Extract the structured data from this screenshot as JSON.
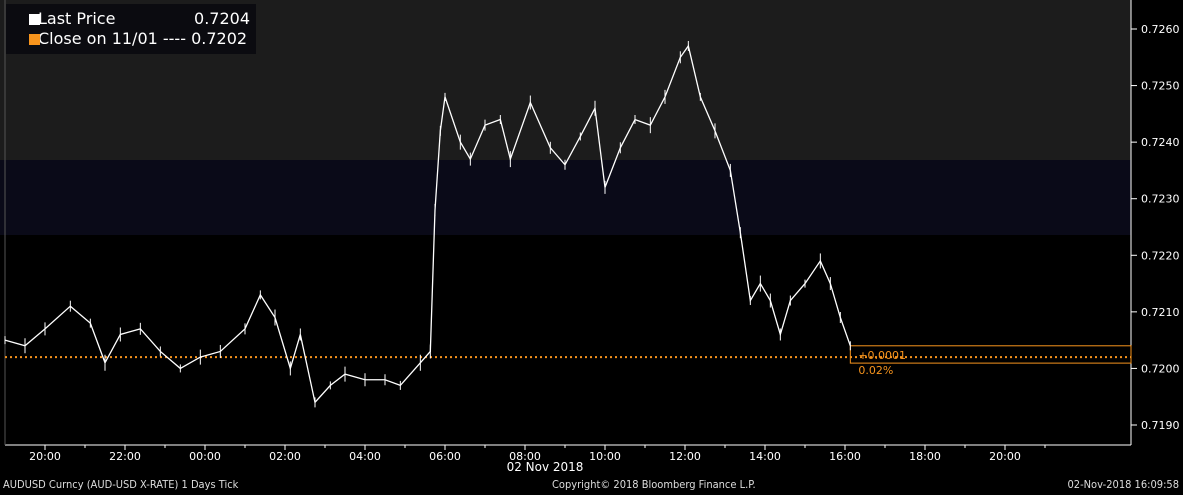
{
  "legend": {
    "last_label": "Last Price",
    "last_value": "0.7204",
    "close_label": "Close on 11/01 ---- 0.7202",
    "close_value": "0.7202"
  },
  "colors": {
    "line": "#ffffff",
    "close": "#f7941d",
    "bg_top": "#1c1c1c",
    "band": "#0a0a18"
  },
  "annotation": {
    "change": "+0.0001",
    "pct": "0.02%"
  },
  "footer": {
    "left": "AUDUSD Curncy (AUD-USD X-RATE) 1 Days  Tick",
    "center": "Copyright© 2018 Bloomberg Finance L.P.",
    "right": "02-Nov-2018 16:09:58"
  },
  "chart_data": {
    "type": "line",
    "ylim": [
      0.7187,
      0.7265
    ],
    "yticks": [
      "0.7260",
      "0.7250",
      "0.7240",
      "0.7230",
      "0.7220",
      "0.7210",
      "0.7200",
      "0.7190"
    ],
    "xticks": [
      "20:00",
      "22:00",
      "00:00",
      "02:00",
      "04:00",
      "06:00",
      "08:00",
      "10:00",
      "12:00",
      "14:00",
      "16:00",
      "18:00",
      "20:00"
    ],
    "xdate": "02 Nov 2018",
    "close_value": 0.7202,
    "last_value": 0.7204,
    "series": [
      {
        "x": [
          "19:00",
          "19:30",
          "20:00",
          "20:38",
          "21:08",
          "21:30",
          "21:53",
          "22:23",
          "22:53",
          "23:23",
          "23:53",
          "00:23",
          "01:00",
          "01:23",
          "01:45",
          "02:08",
          "02:23",
          "02:45",
          "03:08",
          "03:30",
          "04:00",
          "04:30",
          "04:53",
          "05:23",
          "05:38",
          "05:45",
          "05:53",
          "06:00",
          "06:23",
          "06:38",
          "07:00",
          "07:23",
          "07:38",
          "08:08",
          "08:38",
          "09:00",
          "09:23",
          "09:45",
          "10:00",
          "10:23",
          "10:45",
          "11:08",
          "11:30",
          "11:53",
          "12:05",
          "12:23",
          "12:45",
          "13:08",
          "13:23",
          "13:38",
          "13:53",
          "14:08",
          "14:23",
          "14:38",
          "15:00",
          "15:23",
          "15:38",
          "15:53",
          "16:08"
        ],
        "y": [
          0.7205,
          0.7204,
          0.7207,
          0.7211,
          0.7208,
          0.7201,
          0.7206,
          0.7207,
          0.7203,
          0.72,
          0.7202,
          0.7203,
          0.7207,
          0.7213,
          0.7209,
          0.72,
          0.7206,
          0.7194,
          0.7197,
          0.7199,
          0.7198,
          0.7198,
          0.7197,
          0.7201,
          0.7203,
          0.7228,
          0.7242,
          0.7248,
          0.724,
          0.7237,
          0.7243,
          0.7244,
          0.7237,
          0.7247,
          0.7239,
          0.7236,
          0.7241,
          0.7246,
          0.7232,
          0.7239,
          0.7244,
          0.7243,
          0.7248,
          0.7255,
          0.7257,
          0.7248,
          0.7242,
          0.7235,
          0.7224,
          0.7212,
          0.7215,
          0.7212,
          0.7206,
          0.7212,
          0.7215,
          0.7219,
          0.7215,
          0.7209,
          0.7204
        ]
      }
    ]
  }
}
